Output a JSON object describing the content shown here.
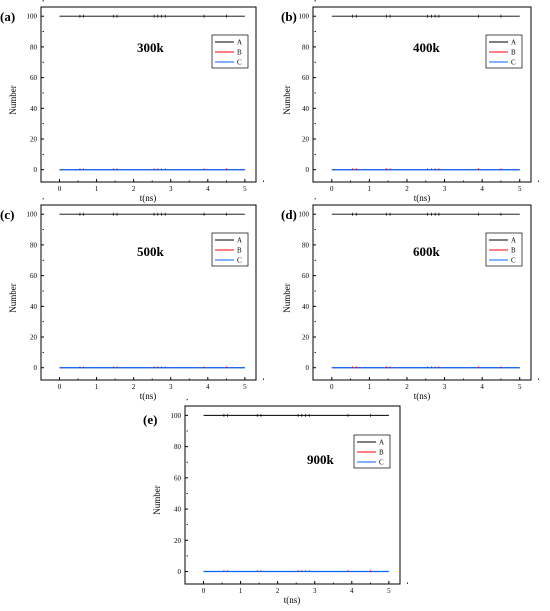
{
  "figure": {
    "panels": [
      "a",
      "b",
      "c",
      "d",
      "e"
    ]
  },
  "colors": {
    "A": "#000000",
    "B": "#ff0000",
    "C": "#0066ff",
    "axis": "#000000"
  },
  "chart_data": [
    {
      "panel_label": "(a)",
      "type": "line",
      "annotation": "300k",
      "xlabel": "t(ns)",
      "ylabel": "Number",
      "xlim": [
        -0.5,
        5.3
      ],
      "ylim": [
        -8,
        106
      ],
      "xticks": [
        "0",
        "1",
        "2",
        "3",
        "4",
        "5"
      ],
      "yticks": [
        "0",
        "20",
        "40",
        "60",
        "80",
        "100"
      ],
      "legend_position": "top-right",
      "grid": false,
      "series": [
        {
          "name": "A",
          "x": [
            0,
            5
          ],
          "y": [
            100,
            100
          ]
        },
        {
          "name": "B",
          "x": [
            0,
            5
          ],
          "y": [
            0,
            0
          ]
        },
        {
          "name": "C",
          "x": [
            0,
            5
          ],
          "y": [
            0,
            0
          ]
        }
      ]
    },
    {
      "panel_label": "(b)",
      "type": "line",
      "annotation": "400k",
      "xlabel": "t(ns)",
      "ylabel": "Number",
      "xlim": [
        -0.5,
        5.3
      ],
      "ylim": [
        -8,
        106
      ],
      "xticks": [
        "0",
        "1",
        "2",
        "3",
        "4",
        "5"
      ],
      "yticks": [
        "0",
        "20",
        "40",
        "60",
        "80",
        "100"
      ],
      "legend_position": "top-right",
      "grid": false,
      "series": [
        {
          "name": "A",
          "x": [
            0,
            5
          ],
          "y": [
            100,
            100
          ]
        },
        {
          "name": "B",
          "x": [
            0,
            5
          ],
          "y": [
            0,
            0
          ]
        },
        {
          "name": "C",
          "x": [
            0,
            5
          ],
          "y": [
            0,
            0
          ]
        }
      ]
    },
    {
      "panel_label": "(c)",
      "type": "line",
      "annotation": "500k",
      "xlabel": "t(ns)",
      "ylabel": "Number",
      "xlim": [
        -0.5,
        5.3
      ],
      "ylim": [
        -8,
        106
      ],
      "xticks": [
        "0",
        "1",
        "2",
        "3",
        "4",
        "5"
      ],
      "yticks": [
        "0",
        "20",
        "40",
        "60",
        "80",
        "100"
      ],
      "legend_position": "top-right",
      "grid": false,
      "series": [
        {
          "name": "A",
          "x": [
            0,
            5
          ],
          "y": [
            100,
            100
          ]
        },
        {
          "name": "B",
          "x": [
            0,
            5
          ],
          "y": [
            0,
            0
          ]
        },
        {
          "name": "C",
          "x": [
            0,
            5
          ],
          "y": [
            0,
            0
          ]
        }
      ]
    },
    {
      "panel_label": "(d)",
      "type": "line",
      "annotation": "600k",
      "xlabel": "t(ns)",
      "ylabel": "Number",
      "xlim": [
        -0.5,
        5.3
      ],
      "ylim": [
        -8,
        106
      ],
      "xticks": [
        "0",
        "1",
        "2",
        "3",
        "4",
        "5"
      ],
      "yticks": [
        "0",
        "20",
        "40",
        "60",
        "80",
        "100"
      ],
      "legend_position": "top-right",
      "grid": false,
      "series": [
        {
          "name": "A",
          "x": [
            0,
            5
          ],
          "y": [
            100,
            100
          ]
        },
        {
          "name": "B",
          "x": [
            0,
            5
          ],
          "y": [
            0,
            0
          ]
        },
        {
          "name": "C",
          "x": [
            0,
            5
          ],
          "y": [
            0,
            0
          ]
        }
      ]
    },
    {
      "panel_label": "(e)",
      "type": "line",
      "annotation": "900k",
      "xlabel": "t(ns)",
      "ylabel": "Number",
      "xlim": [
        -0.5,
        5.3
      ],
      "ylim": [
        -8,
        106
      ],
      "xticks": [
        "0",
        "1",
        "2",
        "3",
        "4",
        "5"
      ],
      "yticks": [
        "0",
        "20",
        "40",
        "60",
        "80",
        "100"
      ],
      "legend_position": "top-right",
      "grid": false,
      "series": [
        {
          "name": "A",
          "x": [
            0,
            5
          ],
          "y": [
            100,
            100
          ]
        },
        {
          "name": "B",
          "x": [
            0,
            5
          ],
          "y": [
            0,
            0
          ]
        },
        {
          "name": "C",
          "x": [
            0,
            5
          ],
          "y": [
            0,
            0
          ]
        }
      ]
    }
  ]
}
